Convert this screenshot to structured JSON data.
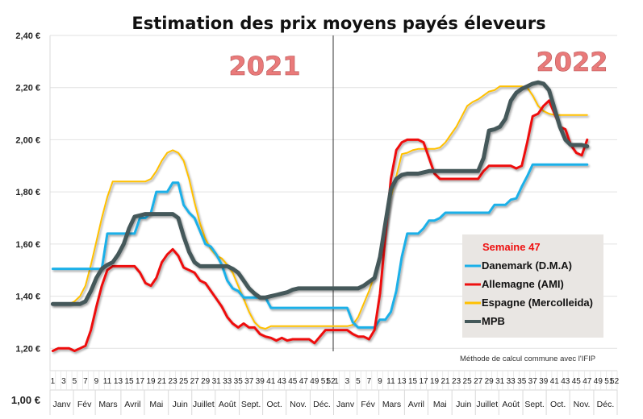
{
  "chart_data": {
    "type": "line",
    "title": "Estimation des prix moyens payés éleveurs",
    "ylim": [
      1.0,
      2.4
    ],
    "yticks": [
      "2,40 €",
      "2,20 €",
      "2,00 €",
      "1,80 €",
      "1,60 €",
      "1,40 €",
      "1,20 €",
      "1,00 €"
    ],
    "ytick_values": [
      2.4,
      2.2,
      2.0,
      1.8,
      1.6,
      1.4,
      1.2,
      1.0
    ],
    "grid": true,
    "year_labels": [
      "2021",
      "2022"
    ],
    "week_labels_2021": [
      "1",
      "3",
      "5",
      "7",
      "9",
      "11",
      "13",
      "15",
      "17",
      "19",
      "21",
      "23",
      "25",
      "27",
      "29",
      "31",
      "33",
      "35",
      "37",
      "39",
      "41",
      "43",
      "45",
      "47",
      "49",
      "51",
      "52"
    ],
    "week_labels_2022": [
      "1",
      "3",
      "5",
      "7",
      "9",
      "11",
      "13",
      "15",
      "17",
      "19",
      "21",
      "23",
      "25",
      "27",
      "29",
      "31",
      "33",
      "35",
      "37",
      "39",
      "41",
      "43",
      "45",
      "47",
      "49",
      "51",
      "52"
    ],
    "months": [
      "Janv",
      "Fév",
      "Mars",
      "Avril",
      "Mai",
      "Juin",
      "Juillet",
      "Août",
      "Sept.",
      "Oct.",
      "Nov.",
      "Déc."
    ],
    "legend": {
      "title": "Semaine 47",
      "position": "bottom-right"
    },
    "note": "Méthode de calcul commune avec l'IFIP",
    "x_unit": "week index (2021 w1..w52, then 2022 w1..w47)",
    "series": [
      {
        "name": "Danemark (D.M.A)",
        "color": "#1ab0e8",
        "values": [
          1.505,
          1.505,
          1.505,
          1.505,
          1.505,
          1.505,
          1.505,
          1.505,
          1.505,
          1.505,
          1.64,
          1.64,
          1.64,
          1.64,
          1.64,
          1.64,
          1.7,
          1.7,
          1.72,
          1.8,
          1.8,
          1.8,
          1.835,
          1.835,
          1.75,
          1.72,
          1.7,
          1.65,
          1.6,
          1.59,
          1.56,
          1.52,
          1.46,
          1.43,
          1.42,
          1.395,
          1.395,
          1.395,
          1.395,
          1.395,
          1.355,
          1.355,
          1.355,
          1.355,
          1.355,
          1.355,
          1.355,
          1.355,
          1.355,
          1.355,
          1.355,
          1.355,
          1.355,
          1.355,
          1.355,
          1.3,
          1.28,
          1.28,
          1.28,
          1.28,
          1.31,
          1.31,
          1.34,
          1.42,
          1.55,
          1.64,
          1.64,
          1.64,
          1.66,
          1.69,
          1.69,
          1.7,
          1.72,
          1.72,
          1.72,
          1.72,
          1.72,
          1.72,
          1.72,
          1.72,
          1.72,
          1.75,
          1.75,
          1.75,
          1.77,
          1.775,
          1.82,
          1.86,
          1.905,
          1.905,
          1.905,
          1.905,
          1.905,
          1.905,
          1.905,
          1.905,
          1.905,
          1.905,
          1.905
        ]
      },
      {
        "name": "Allemagne (AMI)",
        "color": "#ee1111",
        "values": [
          1.19,
          1.2,
          1.2,
          1.2,
          1.19,
          1.2,
          1.21,
          1.27,
          1.36,
          1.44,
          1.5,
          1.515,
          1.515,
          1.515,
          1.515,
          1.515,
          1.49,
          1.45,
          1.44,
          1.47,
          1.53,
          1.56,
          1.58,
          1.555,
          1.51,
          1.5,
          1.49,
          1.46,
          1.45,
          1.42,
          1.39,
          1.36,
          1.32,
          1.295,
          1.28,
          1.295,
          1.28,
          1.28,
          1.255,
          1.245,
          1.24,
          1.23,
          1.24,
          1.23,
          1.235,
          1.235,
          1.235,
          1.235,
          1.22,
          1.245,
          1.27,
          1.27,
          1.27,
          1.27,
          1.27,
          1.255,
          1.245,
          1.245,
          1.235,
          1.27,
          1.41,
          1.63,
          1.85,
          1.96,
          1.99,
          2.0,
          2.0,
          2.0,
          1.99,
          1.93,
          1.87,
          1.85,
          1.85,
          1.85,
          1.85,
          1.85,
          1.85,
          1.85,
          1.85,
          1.88,
          1.9,
          1.9,
          1.9,
          1.9,
          1.9,
          1.89,
          1.9,
          1.99,
          2.09,
          2.1,
          2.13,
          2.15,
          2.1,
          2.05,
          2.04,
          1.98,
          1.95,
          1.94,
          2.0
        ]
      },
      {
        "name": "Espagne (Mercolleida)",
        "color": "#ffc000",
        "values": [
          1.37,
          1.37,
          1.37,
          1.37,
          1.38,
          1.4,
          1.44,
          1.52,
          1.61,
          1.7,
          1.78,
          1.84,
          1.84,
          1.84,
          1.84,
          1.84,
          1.84,
          1.84,
          1.85,
          1.88,
          1.92,
          1.95,
          1.96,
          1.95,
          1.92,
          1.85,
          1.76,
          1.68,
          1.62,
          1.58,
          1.555,
          1.545,
          1.52,
          1.49,
          1.44,
          1.39,
          1.34,
          1.3,
          1.28,
          1.275,
          1.285,
          1.285,
          1.285,
          1.285,
          1.285,
          1.285,
          1.285,
          1.285,
          1.285,
          1.285,
          1.285,
          1.285,
          1.285,
          1.285,
          1.285,
          1.29,
          1.32,
          1.37,
          1.42,
          1.48,
          1.56,
          1.66,
          1.78,
          1.86,
          1.945,
          1.95,
          1.96,
          1.965,
          1.965,
          1.965,
          1.965,
          1.97,
          1.99,
          2.02,
          2.05,
          2.09,
          2.13,
          2.145,
          2.155,
          2.17,
          2.185,
          2.19,
          2.205,
          2.205,
          2.205,
          2.205,
          2.205,
          2.2,
          2.17,
          2.13,
          2.11,
          2.1,
          2.095,
          2.095,
          2.095,
          2.095,
          2.095,
          2.095,
          2.095
        ]
      },
      {
        "name": "MPB",
        "color": "#44585a",
        "values": [
          1.37,
          1.37,
          1.37,
          1.37,
          1.37,
          1.37,
          1.38,
          1.42,
          1.47,
          1.505,
          1.52,
          1.53,
          1.56,
          1.6,
          1.66,
          1.705,
          1.71,
          1.715,
          1.715,
          1.715,
          1.715,
          1.715,
          1.715,
          1.7,
          1.63,
          1.57,
          1.53,
          1.515,
          1.515,
          1.515,
          1.515,
          1.515,
          1.515,
          1.505,
          1.49,
          1.46,
          1.43,
          1.41,
          1.395,
          1.395,
          1.4,
          1.405,
          1.41,
          1.415,
          1.425,
          1.43,
          1.43,
          1.43,
          1.43,
          1.43,
          1.43,
          1.43,
          1.43,
          1.43,
          1.43,
          1.43,
          1.43,
          1.44,
          1.455,
          1.47,
          1.55,
          1.68,
          1.81,
          1.85,
          1.865,
          1.87,
          1.87,
          1.87,
          1.875,
          1.88,
          1.88,
          1.88,
          1.88,
          1.88,
          1.88,
          1.88,
          1.88,
          1.88,
          1.88,
          1.93,
          2.035,
          2.04,
          2.05,
          2.08,
          2.15,
          2.18,
          2.195,
          2.205,
          2.215,
          2.22,
          2.215,
          2.19,
          2.12,
          2.05,
          2.0,
          1.98,
          1.98,
          1.98,
          1.975
        ]
      }
    ]
  }
}
